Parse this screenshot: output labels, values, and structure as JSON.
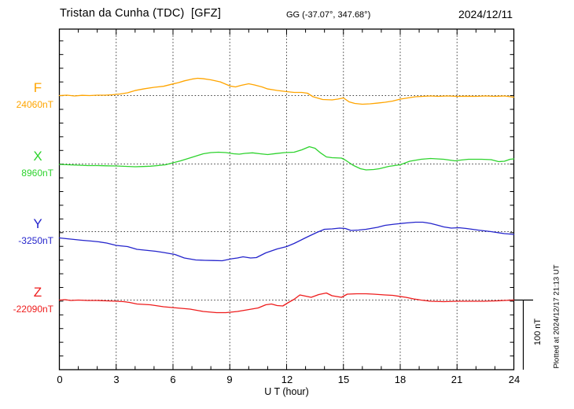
{
  "header": {
    "title": "Tristan da Cunha (TDC)  [GFZ]",
    "coords": "GG (-37.07°, 347.68°)",
    "date": "2024/12/11"
  },
  "axis": {
    "x_label": "U T (hour)",
    "x_ticks": [
      "0",
      "3",
      "6",
      "9",
      "12",
      "15",
      "18",
      "21",
      "24"
    ]
  },
  "scale_bar": {
    "label": "100 nT",
    "value_nT": 100
  },
  "footer_note": "Plotted at 2024/12/17 21:13 UT",
  "chart_data": {
    "type": "line",
    "title": "Magnetogram Tristan da Cunha (TDC) [GFZ] 2024/12/11",
    "xlabel": "U T (hour)",
    "x_range": [
      0,
      24
    ],
    "x_major_tick_step_hours": 3,
    "x_minor_tick_step_hours": 1,
    "y_tick_step_nT": 20,
    "grid": "dotted vertical at 3h steps, dotted horizontal at each channel baseline",
    "scale_bar_nT": 100,
    "series": [
      {
        "name": "F",
        "base_label": "24060nT",
        "base_value_nT": 24060,
        "color": "#ffa500",
        "points": [
          [
            0,
            0
          ],
          [
            0.4,
            0.6
          ],
          [
            0.8,
            -0.6
          ],
          [
            1.2,
            0.3
          ],
          [
            1.6,
            0
          ],
          [
            2,
            0.6
          ],
          [
            2.4,
            0.6
          ],
          [
            2.8,
            1.1
          ],
          [
            3.2,
            2.3
          ],
          [
            3.6,
            4
          ],
          [
            4,
            7.4
          ],
          [
            4.5,
            10
          ],
          [
            5,
            12
          ],
          [
            5.5,
            13.5
          ],
          [
            6,
            17
          ],
          [
            6.3,
            19
          ],
          [
            6.6,
            21.5
          ],
          [
            7,
            24
          ],
          [
            7.3,
            25.3
          ],
          [
            7.6,
            24.6
          ],
          [
            8,
            23
          ],
          [
            8.5,
            20
          ],
          [
            9,
            14
          ],
          [
            9.3,
            12.6
          ],
          [
            9.6,
            14.9
          ],
          [
            10,
            17.2
          ],
          [
            10.3,
            15.5
          ],
          [
            10.7,
            12.6
          ],
          [
            11,
            9.7
          ],
          [
            11.5,
            7.5
          ],
          [
            12,
            5.7
          ],
          [
            12.4,
            4.6
          ],
          [
            12.8,
            4.6
          ],
          [
            13.1,
            3.4
          ],
          [
            13.4,
            -1.7
          ],
          [
            13.9,
            -5.7
          ],
          [
            14.4,
            -6.3
          ],
          [
            14.7,
            -5.2
          ],
          [
            15,
            -3.4
          ],
          [
            15.3,
            -9.2
          ],
          [
            15.6,
            -11.5
          ],
          [
            16,
            -12.6
          ],
          [
            16.4,
            -12
          ],
          [
            16.8,
            -11
          ],
          [
            17.2,
            -9.8
          ],
          [
            17.6,
            -8
          ],
          [
            18,
            -5.2
          ],
          [
            18.4,
            -3.4
          ],
          [
            18.8,
            -1.7
          ],
          [
            19.2,
            -1.1
          ],
          [
            19.6,
            -0.6
          ],
          [
            20,
            -1.1
          ],
          [
            20.5,
            -0.6
          ],
          [
            21,
            -1.1
          ],
          [
            21.5,
            -0.9
          ],
          [
            22,
            -1.1
          ],
          [
            22.5,
            -0.6
          ],
          [
            23,
            -1.1
          ],
          [
            23.5,
            -0.6
          ],
          [
            24,
            -2.3
          ]
        ]
      },
      {
        "name": "X",
        "base_label": "8960nT",
        "base_value_nT": 8960,
        "color": "#2ed32e",
        "points": [
          [
            0,
            -0.6
          ],
          [
            0.5,
            -1.1
          ],
          [
            1,
            -1.7
          ],
          [
            1.5,
            -2.3
          ],
          [
            2,
            -2.3
          ],
          [
            2.5,
            -2.6
          ],
          [
            3,
            -2.9
          ],
          [
            3.5,
            -3.4
          ],
          [
            4,
            -4
          ],
          [
            4.4,
            -3.7
          ],
          [
            4.8,
            -3.2
          ],
          [
            5.2,
            -2.3
          ],
          [
            5.6,
            -1.1
          ],
          [
            6,
            1.7
          ],
          [
            6.4,
            4.6
          ],
          [
            6.8,
            8
          ],
          [
            7.2,
            11.5
          ],
          [
            7.6,
            14.9
          ],
          [
            8,
            16.6
          ],
          [
            8.4,
            17.2
          ],
          [
            8.8,
            16.6
          ],
          [
            9.2,
            14.9
          ],
          [
            9.5,
            14.3
          ],
          [
            9.8,
            15.5
          ],
          [
            10.2,
            16.3
          ],
          [
            10.6,
            14.9
          ],
          [
            11,
            13.8
          ],
          [
            11.4,
            15.2
          ],
          [
            11.9,
            16.6
          ],
          [
            12.4,
            17.2
          ],
          [
            12.8,
            20.7
          ],
          [
            13.2,
            25.3
          ],
          [
            13.5,
            23
          ],
          [
            13.8,
            16
          ],
          [
            14.1,
            10.3
          ],
          [
            14.4,
            9.2
          ],
          [
            14.9,
            8.6
          ],
          [
            15.1,
            5.7
          ],
          [
            15.5,
            -1.7
          ],
          [
            15.9,
            -6.9
          ],
          [
            16.2,
            -8.6
          ],
          [
            16.6,
            -8
          ],
          [
            16.9,
            -6.9
          ],
          [
            17.4,
            -3.4
          ],
          [
            18,
            -1.1
          ],
          [
            18.5,
            4
          ],
          [
            19.1,
            6.9
          ],
          [
            19.6,
            8
          ],
          [
            20.3,
            6.9
          ],
          [
            20.9,
            4.6
          ],
          [
            21.2,
            5.7
          ],
          [
            21.6,
            6.9
          ],
          [
            22.3,
            6.9
          ],
          [
            22.8,
            6.3
          ],
          [
            23.2,
            3.4
          ],
          [
            23.5,
            4
          ],
          [
            23.8,
            6.9
          ],
          [
            24,
            7.5
          ]
        ]
      },
      {
        "name": "Y",
        "base_label": "-3250nT",
        "base_value_nT": -3250,
        "color": "#2525cc",
        "points": [
          [
            0,
            -9.2
          ],
          [
            0.4,
            -10.3
          ],
          [
            0.8,
            -11.5
          ],
          [
            1.2,
            -12.6
          ],
          [
            1.7,
            -13.8
          ],
          [
            2.1,
            -14.9
          ],
          [
            2.5,
            -16.6
          ],
          [
            3,
            -20.1
          ],
          [
            3.6,
            -21.8
          ],
          [
            4.1,
            -25.8
          ],
          [
            4.7,
            -27.6
          ],
          [
            5.1,
            -28.7
          ],
          [
            5.5,
            -30.4
          ],
          [
            6.1,
            -33.3
          ],
          [
            6.6,
            -38.5
          ],
          [
            7.2,
            -41.3
          ],
          [
            7.7,
            -41.9
          ],
          [
            8.1,
            -42.1
          ],
          [
            8.6,
            -42.5
          ],
          [
            9.1,
            -39.6
          ],
          [
            9.4,
            -38.5
          ],
          [
            9.7,
            -36.7
          ],
          [
            10.1,
            -38.5
          ],
          [
            10.4,
            -37.9
          ],
          [
            10.9,
            -31
          ],
          [
            11.5,
            -25.3
          ],
          [
            12,
            -21.8
          ],
          [
            12.4,
            -17.2
          ],
          [
            12.9,
            -10.3
          ],
          [
            13.2,
            -6.3
          ],
          [
            13.6,
            -1.1
          ],
          [
            14,
            3.4
          ],
          [
            14.4,
            4
          ],
          [
            14.8,
            5.2
          ],
          [
            15.1,
            4.6
          ],
          [
            15.4,
            1.7
          ],
          [
            15.8,
            2.3
          ],
          [
            16.2,
            3.4
          ],
          [
            16.8,
            6.3
          ],
          [
            17.2,
            9.2
          ],
          [
            17.7,
            10.9
          ],
          [
            18.3,
            12.6
          ],
          [
            18.8,
            13.8
          ],
          [
            19.2,
            13.8
          ],
          [
            19.6,
            12
          ],
          [
            20,
            9.2
          ],
          [
            20.3,
            6.9
          ],
          [
            20.7,
            5.2
          ],
          [
            21.1,
            5.7
          ],
          [
            21.5,
            4.6
          ],
          [
            22.1,
            2.3
          ],
          [
            22.8,
            0
          ],
          [
            23.5,
            -2.9
          ],
          [
            24,
            -4
          ]
        ]
      },
      {
        "name": "Z",
        "base_label": "-22090nT",
        "base_value_nT": -22090,
        "color": "#ee1c1c",
        "points": [
          [
            0,
            0
          ],
          [
            0.3,
            0.6
          ],
          [
            0.6,
            -0.6
          ],
          [
            1,
            0
          ],
          [
            1.5,
            -0.6
          ],
          [
            2,
            -0.6
          ],
          [
            2.5,
            -1.1
          ],
          [
            3,
            -1.7
          ],
          [
            3.4,
            -2.3
          ],
          [
            3.7,
            -3.4
          ],
          [
            4.1,
            -5.7
          ],
          [
            4.8,
            -6.9
          ],
          [
            5.5,
            -9.8
          ],
          [
            6.2,
            -11.5
          ],
          [
            6.9,
            -13.2
          ],
          [
            7.6,
            -16.6
          ],
          [
            8.3,
            -18.4
          ],
          [
            8.8,
            -18.4
          ],
          [
            9.4,
            -16.6
          ],
          [
            9.9,
            -14.3
          ],
          [
            10.5,
            -11.5
          ],
          [
            10.9,
            -6.9
          ],
          [
            11.2,
            -5.7
          ],
          [
            11.5,
            -8
          ],
          [
            11.8,
            -8.6
          ],
          [
            12.1,
            -3.4
          ],
          [
            12.4,
            1.1
          ],
          [
            12.7,
            7.5
          ],
          [
            13,
            5.7
          ],
          [
            13.3,
            4
          ],
          [
            13.7,
            8
          ],
          [
            14.1,
            10.3
          ],
          [
            14.4,
            6.3
          ],
          [
            14.9,
            4
          ],
          [
            15.2,
            8.6
          ],
          [
            15.7,
            9.2
          ],
          [
            16.2,
            9.2
          ],
          [
            16.6,
            8.6
          ],
          [
            17.2,
            7.5
          ],
          [
            17.6,
            6.9
          ],
          [
            18.3,
            4
          ],
          [
            18.7,
            1.7
          ],
          [
            19.1,
            0
          ],
          [
            19.6,
            -1.7
          ],
          [
            20.3,
            -2.3
          ],
          [
            21,
            -1.7
          ],
          [
            21.7,
            -1.7
          ],
          [
            22.4,
            -1.7
          ],
          [
            23.1,
            -1.1
          ],
          [
            23.5,
            -0.6
          ],
          [
            24,
            0
          ]
        ]
      }
    ]
  }
}
